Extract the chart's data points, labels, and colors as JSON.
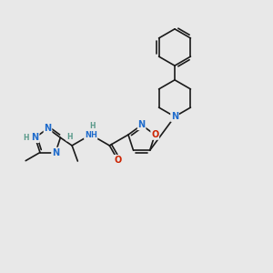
{
  "background_color": "#e8e8e8",
  "bond_color": "#1a1a1a",
  "atom_colors": {
    "N": "#1e6bcc",
    "O": "#cc2200",
    "H": "#5a9a8a",
    "C": "#1a1a1a"
  },
  "font_size_atom": 7.0,
  "font_size_H": 5.5,
  "line_width": 1.2,
  "scale": 28
}
